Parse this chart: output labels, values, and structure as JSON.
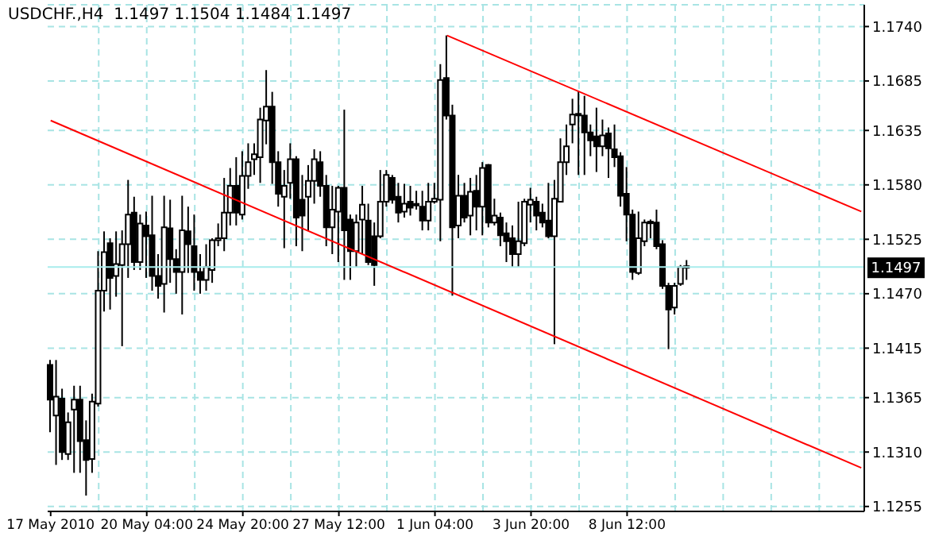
{
  "chart_data": {
    "type": "candlestick",
    "title": "USDCHF.,H4  1.1497 1.1504 1.1484 1.1497",
    "categories": [
      "17 May 2010",
      null,
      null,
      null,
      null,
      null,
      null,
      null,
      null,
      null,
      null,
      null,
      null,
      null,
      null,
      null,
      "20 May 04:00",
      null,
      null,
      null,
      null,
      null,
      null,
      null,
      null,
      null,
      null,
      null,
      null,
      null,
      null,
      null,
      "24 May 20:00",
      null,
      null,
      null,
      null,
      null,
      null,
      null,
      null,
      null,
      null,
      null,
      null,
      null,
      null,
      null,
      "27 May 12:00",
      null,
      null,
      null,
      null,
      null,
      null,
      null,
      null,
      null,
      null,
      null,
      null,
      null,
      null,
      null,
      "1 Jun 04:00",
      null,
      null,
      null,
      null,
      null,
      null,
      null,
      null,
      null,
      null,
      null,
      null,
      null,
      null,
      null,
      "3 Jun 20:00",
      null,
      null,
      null,
      null,
      null,
      null,
      null,
      null,
      null,
      null,
      null,
      null,
      null,
      null,
      null,
      "8 Jun 12:00",
      null,
      null,
      null,
      null,
      null,
      null,
      null,
      null,
      null,
      null,
      null,
      null,
      null,
      null,
      null,
      null,
      null,
      null,
      null,
      null,
      null,
      null,
      null,
      null,
      null,
      null,
      null,
      null,
      null,
      null,
      null,
      null,
      null,
      null,
      null,
      null,
      null,
      null,
      null
    ],
    "ohlc": [
      [
        1.1398,
        1.1403,
        1.133,
        1.1363
      ],
      [
        1.1347,
        1.1403,
        1.1297,
        1.1366
      ],
      [
        1.1364,
        1.1374,
        1.1302,
        1.131
      ],
      [
        1.1308,
        1.135,
        1.1302,
        1.134
      ],
      [
        1.1353,
        1.1377,
        1.1289,
        1.1363
      ],
      [
        1.1363,
        1.1377,
        1.1289,
        1.1321
      ],
      [
        1.1322,
        1.1342,
        1.1266,
        1.1302
      ],
      [
        1.1303,
        1.1369,
        1.1289,
        1.1361
      ],
      [
        1.1359,
        1.1513,
        1.1356,
        1.1473
      ],
      [
        1.1473,
        1.1533,
        1.1452,
        1.1512
      ],
      [
        1.1521,
        1.1526,
        1.1454,
        1.1486
      ],
      [
        1.1488,
        1.1533,
        1.1467,
        1.15
      ],
      [
        1.1499,
        1.1534,
        1.1417,
        1.152
      ],
      [
        1.152,
        1.1585,
        1.1486,
        1.155
      ],
      [
        1.1552,
        1.1568,
        1.1494,
        1.1502
      ],
      [
        1.1502,
        1.155,
        1.1494,
        1.1541
      ],
      [
        1.1539,
        1.1553,
        1.1486,
        1.1528
      ],
      [
        1.1529,
        1.1569,
        1.1473,
        1.1488
      ],
      [
        1.1488,
        1.151,
        1.1465,
        1.1478
      ],
      [
        1.148,
        1.1569,
        1.1451,
        1.1537
      ],
      [
        1.1536,
        1.1565,
        1.1481,
        1.1505
      ],
      [
        1.1505,
        1.1515,
        1.147,
        1.1492
      ],
      [
        1.1492,
        1.1569,
        1.1449,
        1.1534
      ],
      [
        1.1533,
        1.1558,
        1.1491,
        1.152
      ],
      [
        1.1518,
        1.155,
        1.1473,
        1.1492
      ],
      [
        1.1492,
        1.151,
        1.147,
        1.1484
      ],
      [
        1.1484,
        1.152,
        1.1473,
        1.1497
      ],
      [
        1.1494,
        1.1526,
        1.1481,
        1.1524
      ],
      [
        1.1524,
        1.1541,
        1.1518,
        1.1526
      ],
      [
        1.1526,
        1.1587,
        1.1513,
        1.1552
      ],
      [
        1.1552,
        1.1597,
        1.1539,
        1.1579
      ],
      [
        1.1579,
        1.1608,
        1.1539,
        1.1552
      ],
      [
        1.155,
        1.1614,
        1.1545,
        1.1589
      ],
      [
        1.1589,
        1.1622,
        1.1576,
        1.1603
      ],
      [
        1.1606,
        1.1622,
        1.159,
        1.1611
      ],
      [
        1.1608,
        1.1658,
        1.1582,
        1.1646
      ],
      [
        1.1645,
        1.1696,
        1.1621,
        1.1659
      ],
      [
        1.1659,
        1.1674,
        1.1581,
        1.1603
      ],
      [
        1.1603,
        1.1614,
        1.1558,
        1.1571
      ],
      [
        1.1568,
        1.1595,
        1.1516,
        1.1579
      ],
      [
        1.1582,
        1.1622,
        1.1566,
        1.1606
      ],
      [
        1.1606,
        1.1609,
        1.1518,
        1.1547
      ],
      [
        1.1565,
        1.159,
        1.1513,
        1.1549
      ],
      [
        1.1568,
        1.16,
        1.1534,
        1.1584
      ],
      [
        1.1584,
        1.1616,
        1.1561,
        1.1606
      ],
      [
        1.1603,
        1.1614,
        1.1568,
        1.1579
      ],
      [
        1.1579,
        1.159,
        1.1518,
        1.1537
      ],
      [
        1.1537,
        1.1579,
        1.151,
        1.1555
      ],
      [
        1.1553,
        1.1579,
        1.1502,
        1.1577
      ],
      [
        1.1577,
        1.1656,
        1.1484,
        1.1534
      ],
      [
        1.1545,
        1.155,
        1.1484,
        1.1513
      ],
      [
        1.1513,
        1.155,
        1.1497,
        1.1542
      ],
      [
        1.1545,
        1.1579,
        1.151,
        1.156
      ],
      [
        1.1544,
        1.1561,
        1.1499,
        1.1502
      ],
      [
        1.1528,
        1.1542,
        1.1478,
        1.1499
      ],
      [
        1.1528,
        1.1595,
        1.1526,
        1.1563
      ],
      [
        1.1563,
        1.1595,
        1.1558,
        1.159
      ],
      [
        1.1587,
        1.159,
        1.1561,
        1.1565
      ],
      [
        1.1568,
        1.1582,
        1.1542,
        1.1552
      ],
      [
        1.1553,
        1.1581,
        1.1547,
        1.1561
      ],
      [
        1.1563,
        1.1579,
        1.1549,
        1.1557
      ],
      [
        1.156,
        1.1574,
        1.1555,
        1.156
      ],
      [
        1.1558,
        1.1574,
        1.1534,
        1.1544
      ],
      [
        1.1544,
        1.1582,
        1.1534,
        1.1563
      ],
      [
        1.1563,
        1.1582,
        1.1561,
        1.1566
      ],
      [
        1.1565,
        1.1702,
        1.1523,
        1.1686
      ],
      [
        1.1688,
        1.1731,
        1.1646,
        1.165
      ],
      [
        1.165,
        1.1661,
        1.1468,
        1.1537
      ],
      [
        1.1539,
        1.159,
        1.1526,
        1.1569
      ],
      [
        1.1569,
        1.1582,
        1.1542,
        1.1547
      ],
      [
        1.1549,
        1.1587,
        1.1529,
        1.1573
      ],
      [
        1.1574,
        1.159,
        1.1534,
        1.1558
      ],
      [
        1.1558,
        1.1603,
        1.1529,
        1.1597
      ],
      [
        1.16,
        1.1601,
        1.1537,
        1.1542
      ],
      [
        1.1542,
        1.1566,
        1.1539,
        1.1549
      ],
      [
        1.1547,
        1.1552,
        1.1518,
        1.1529
      ],
      [
        1.1531,
        1.1542,
        1.1502,
        1.1523
      ],
      [
        1.1526,
        1.1539,
        1.1497,
        1.151
      ],
      [
        1.151,
        1.1563,
        1.1497,
        1.1523
      ],
      [
        1.1521,
        1.1566,
        1.1518,
        1.1563
      ],
      [
        1.156,
        1.1577,
        1.1542,
        1.1565
      ],
      [
        1.1563,
        1.1568,
        1.1534,
        1.1549
      ],
      [
        1.1552,
        1.1561,
        1.1537,
        1.1542
      ],
      [
        1.1544,
        1.1582,
        1.1526,
        1.1528
      ],
      [
        1.1528,
        1.1585,
        1.1419,
        1.1566
      ],
      [
        1.1563,
        1.1627,
        1.1563,
        1.1603
      ],
      [
        1.1603,
        1.1641,
        1.159,
        1.1619
      ],
      [
        1.1641,
        1.1667,
        1.1622,
        1.1651
      ],
      [
        1.1651,
        1.1675,
        1.159,
        1.165
      ],
      [
        1.165,
        1.167,
        1.159,
        1.1633
      ],
      [
        1.1633,
        1.1641,
        1.1609,
        1.1625
      ],
      [
        1.1629,
        1.1658,
        1.1593,
        1.1619
      ],
      [
        1.1619,
        1.1646,
        1.1609,
        1.163
      ],
      [
        1.1632,
        1.1638,
        1.1587,
        1.1617
      ],
      [
        1.1616,
        1.1641,
        1.1598,
        1.1608
      ],
      [
        1.1609,
        1.1613,
        1.1558,
        1.1569
      ],
      [
        1.1571,
        1.1598,
        1.1523,
        1.155
      ],
      [
        1.155,
        1.1555,
        1.1484,
        1.1492
      ],
      [
        1.1491,
        1.1553,
        1.1489,
        1.1526
      ],
      [
        1.1523,
        1.1545,
        1.1518,
        1.1542
      ],
      [
        1.1541,
        1.1545,
        1.1526,
        1.1542
      ],
      [
        1.1542,
        1.1555,
        1.1515,
        1.1518
      ],
      [
        1.152,
        1.1524,
        1.1475,
        1.1478
      ],
      [
        1.1478,
        1.1481,
        1.1414,
        1.1454
      ],
      [
        1.1456,
        1.1481,
        1.1449,
        1.1478
      ],
      [
        1.148,
        1.1499,
        1.1478,
        1.1497
      ],
      [
        1.1497,
        1.1504,
        1.1484,
        1.1497
      ],
      null,
      null,
      null,
      null,
      null,
      null,
      null,
      null,
      null,
      null,
      null,
      null,
      null,
      null,
      null,
      null,
      null,
      null,
      null,
      null,
      null,
      null,
      null,
      null,
      null,
      null,
      null,
      null,
      null
    ],
    "series": [
      {
        "type": "line",
        "color": "#ff0000",
        "values": [
          1.1645,
          null,
          null,
          null,
          null,
          null,
          null,
          null,
          null,
          null,
          null,
          null,
          null,
          null,
          null,
          null,
          null,
          null,
          null,
          null,
          null,
          null,
          null,
          null,
          null,
          null,
          null,
          null,
          null,
          null,
          null,
          null,
          null,
          null,
          null,
          null,
          null,
          null,
          null,
          null,
          null,
          null,
          null,
          null,
          null,
          null,
          null,
          null,
          null,
          null,
          null,
          null,
          null,
          null,
          null,
          null,
          null,
          null,
          null,
          null,
          null,
          null,
          null,
          null,
          null,
          null,
          null,
          null,
          null,
          null,
          null,
          null,
          null,
          null,
          null,
          null,
          null,
          null,
          null,
          null,
          null,
          null,
          null,
          null,
          null,
          null,
          null,
          null,
          null,
          null,
          null,
          null,
          null,
          null,
          null,
          null,
          null,
          null,
          null,
          null,
          null,
          null,
          null,
          null,
          null,
          null,
          null,
          null,
          null,
          null,
          null,
          null,
          null,
          null,
          null,
          null,
          null,
          null,
          null,
          null,
          null,
          null,
          null,
          null,
          null,
          null,
          null,
          null,
          null,
          null,
          null,
          null,
          null,
          null,
          null,
          1.1294
        ]
      },
      {
        "type": "line",
        "color": "#ff0000",
        "values": [
          null,
          null,
          null,
          null,
          null,
          null,
          null,
          null,
          null,
          null,
          null,
          null,
          null,
          null,
          null,
          null,
          null,
          null,
          null,
          null,
          null,
          null,
          null,
          null,
          null,
          null,
          null,
          null,
          null,
          null,
          null,
          null,
          null,
          null,
          null,
          null,
          null,
          null,
          null,
          null,
          null,
          null,
          null,
          null,
          null,
          null,
          null,
          null,
          null,
          null,
          null,
          null,
          null,
          null,
          null,
          null,
          null,
          null,
          null,
          null,
          null,
          null,
          null,
          null,
          null,
          null,
          1.1731,
          null,
          null,
          null,
          null,
          null,
          null,
          null,
          null,
          null,
          null,
          null,
          null,
          null,
          null,
          null,
          null,
          null,
          null,
          null,
          null,
          null,
          null,
          null,
          null,
          null,
          null,
          null,
          null,
          null,
          null,
          null,
          null,
          null,
          null,
          null,
          null,
          null,
          null,
          null,
          null,
          null,
          null,
          null,
          null,
          null,
          null,
          null,
          null,
          null,
          null,
          null,
          null,
          null,
          null,
          null,
          null,
          null,
          null,
          null,
          null,
          null,
          null,
          null,
          null,
          null,
          null,
          null,
          null,
          1.1553
        ]
      }
    ],
    "ylim": [
      1.125,
      1.1762
    ],
    "yticks": [
      {
        "value": 1.174,
        "label": "1.1740"
      },
      1.1685,
      1.1635,
      {
        "value": 1.158,
        "label": "1.1580"
      },
      1.1525,
      {
        "value": 1.147,
        "label": "1.1470"
      },
      1.1415,
      1.1365,
      {
        "value": 1.131,
        "label": "1.1310"
      },
      1.1255
    ],
    "ref_lines": [
      {
        "axis": "y",
        "value": 1.1497,
        "label": "1.1497",
        "color": "#a8ecec"
      }
    ],
    "grid": true
  }
}
